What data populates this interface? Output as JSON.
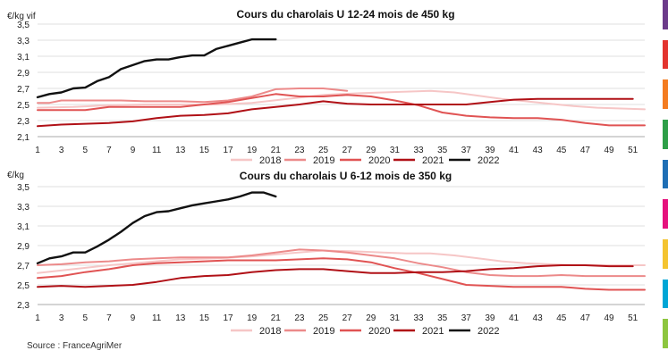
{
  "source": "Source : FranceAgriMer",
  "right_strip_colors": [
    "#6c3b8a",
    "#e3342f",
    "#f47c20",
    "#2e9f48",
    "#1f6fb5",
    "#e5127d",
    "#f4c430",
    "#00a6d6",
    "#8dc63f"
  ],
  "chart_data": [
    {
      "type": "line",
      "title": "Cours du charolais U 12-24 mois de 450 kg",
      "ylabel": "€/kg vif",
      "xlabel": "",
      "ylim": [
        2.1,
        3.5
      ],
      "yticks": [
        "2,1",
        "2,3",
        "2,5",
        "2,7",
        "2,9",
        "3,1",
        "3,3",
        "3,5"
      ],
      "xlim": [
        1,
        52
      ],
      "xticks": [
        "1",
        "3",
        "5",
        "7",
        "9",
        "11",
        "13",
        "15",
        "17",
        "19",
        "21",
        "23",
        "25",
        "27",
        "29",
        "31",
        "33",
        "35",
        "37",
        "39",
        "41",
        "43",
        "45",
        "47",
        "49",
        "51"
      ],
      "grid": "horizontal",
      "legend_position": "bottom",
      "series": [
        {
          "name": "2018",
          "color": "#f6c6c6",
          "width": 2,
          "x": [
            1,
            4,
            7,
            10,
            13,
            16,
            19,
            22,
            25,
            28,
            30,
            32,
            34,
            36,
            38,
            40,
            42,
            44,
            46,
            48,
            50,
            52
          ],
          "y": [
            2.46,
            2.47,
            2.49,
            2.5,
            2.5,
            2.5,
            2.52,
            2.57,
            2.62,
            2.64,
            2.65,
            2.66,
            2.67,
            2.65,
            2.61,
            2.57,
            2.54,
            2.51,
            2.48,
            2.46,
            2.45,
            2.44
          ]
        },
        {
          "name": "2019",
          "color": "#ec8a8a",
          "width": 2,
          "x": [
            1,
            2,
            3,
            5,
            8,
            10,
            13,
            15,
            17,
            19,
            21,
            23,
            25,
            27
          ],
          "y": [
            2.52,
            2.52,
            2.55,
            2.55,
            2.55,
            2.54,
            2.54,
            2.53,
            2.55,
            2.6,
            2.69,
            2.7,
            2.7,
            2.67
          ]
        },
        {
          "name": "2020",
          "color": "#e05353",
          "width": 2,
          "x": [
            1,
            3,
            5,
            7,
            9,
            11,
            13,
            15,
            17,
            19,
            21,
            23,
            25,
            27,
            29,
            31,
            33,
            35,
            37,
            39,
            41,
            43,
            45,
            47,
            49,
            52
          ],
          "y": [
            2.43,
            2.43,
            2.43,
            2.47,
            2.47,
            2.47,
            2.47,
            2.5,
            2.53,
            2.58,
            2.63,
            2.6,
            2.6,
            2.62,
            2.6,
            2.55,
            2.49,
            2.4,
            2.36,
            2.34,
            2.33,
            2.33,
            2.31,
            2.27,
            2.24,
            2.24
          ]
        },
        {
          "name": "2021",
          "color": "#b01016",
          "width": 2,
          "x": [
            1,
            3,
            5,
            7,
            9,
            11,
            13,
            15,
            17,
            19,
            21,
            23,
            25,
            27,
            29,
            31,
            33,
            35,
            37,
            39,
            41,
            43,
            45,
            47,
            49,
            51
          ],
          "y": [
            2.23,
            2.25,
            2.26,
            2.27,
            2.29,
            2.33,
            2.36,
            2.37,
            2.39,
            2.44,
            2.47,
            2.5,
            2.54,
            2.51,
            2.5,
            2.5,
            2.5,
            2.5,
            2.5,
            2.53,
            2.56,
            2.57,
            2.57,
            2.57,
            2.57,
            2.57
          ]
        },
        {
          "name": "2022",
          "color": "#111111",
          "width": 2.4,
          "x": [
            1,
            2,
            3,
            4,
            5,
            6,
            7,
            8,
            9,
            10,
            11,
            12,
            13,
            14,
            15,
            16,
            17,
            18,
            19,
            20,
            21
          ],
          "y": [
            2.59,
            2.63,
            2.65,
            2.7,
            2.71,
            2.79,
            2.84,
            2.94,
            2.99,
            3.04,
            3.06,
            3.06,
            3.09,
            3.11,
            3.11,
            3.19,
            3.23,
            3.27,
            3.31,
            3.31,
            3.31
          ]
        }
      ]
    },
    {
      "type": "line",
      "title": "Cours du charolais U 6-12 mois de 350 kg",
      "ylabel": "€/kg",
      "xlabel": "",
      "ylim": [
        2.3,
        3.5
      ],
      "yticks": [
        "2,3",
        "2,5",
        "2,7",
        "2,9",
        "3,1",
        "3,3",
        "3,5"
      ],
      "xlim": [
        1,
        52
      ],
      "xticks": [
        "1",
        "3",
        "5",
        "7",
        "9",
        "11",
        "13",
        "15",
        "17",
        "19",
        "21",
        "23",
        "25",
        "27",
        "29",
        "31",
        "33",
        "35",
        "37",
        "39",
        "41",
        "43",
        "45",
        "47",
        "49",
        "51"
      ],
      "grid": "horizontal",
      "legend_position": "bottom",
      "series": [
        {
          "name": "2018",
          "color": "#f6c6c6",
          "width": 2,
          "x": [
            1,
            4,
            7,
            10,
            13,
            16,
            19,
            22,
            25,
            28,
            30,
            32,
            34,
            36,
            38,
            40,
            42,
            44,
            46,
            48,
            50,
            52
          ],
          "y": [
            2.62,
            2.66,
            2.7,
            2.73,
            2.76,
            2.77,
            2.79,
            2.82,
            2.85,
            2.84,
            2.83,
            2.82,
            2.82,
            2.8,
            2.77,
            2.74,
            2.72,
            2.71,
            2.7,
            2.7,
            2.7,
            2.7
          ]
        },
        {
          "name": "2019",
          "color": "#ec8a8a",
          "width": 2,
          "x": [
            1,
            3,
            5,
            7,
            9,
            11,
            13,
            15,
            17,
            19,
            21,
            23,
            25,
            27,
            29,
            31,
            33,
            35,
            37,
            39,
            41,
            43,
            45,
            47,
            49,
            52
          ],
          "y": [
            2.7,
            2.71,
            2.73,
            2.74,
            2.76,
            2.77,
            2.78,
            2.78,
            2.78,
            2.8,
            2.83,
            2.86,
            2.85,
            2.83,
            2.8,
            2.77,
            2.72,
            2.68,
            2.63,
            2.6,
            2.59,
            2.59,
            2.6,
            2.59,
            2.59,
            2.59
          ]
        },
        {
          "name": "2020",
          "color": "#e05353",
          "width": 2,
          "x": [
            1,
            3,
            5,
            7,
            9,
            11,
            13,
            15,
            17,
            19,
            21,
            23,
            25,
            27,
            29,
            31,
            33,
            35,
            37,
            39,
            41,
            43,
            45,
            47,
            49,
            52
          ],
          "y": [
            2.57,
            2.59,
            2.63,
            2.66,
            2.7,
            2.72,
            2.73,
            2.74,
            2.75,
            2.75,
            2.75,
            2.76,
            2.77,
            2.76,
            2.73,
            2.67,
            2.62,
            2.56,
            2.5,
            2.49,
            2.48,
            2.48,
            2.48,
            2.46,
            2.45,
            2.45
          ]
        },
        {
          "name": "2021",
          "color": "#b01016",
          "width": 2,
          "x": [
            1,
            3,
            5,
            7,
            9,
            11,
            13,
            15,
            17,
            19,
            21,
            23,
            25,
            27,
            29,
            31,
            33,
            35,
            37,
            39,
            41,
            43,
            45,
            47,
            49,
            51
          ],
          "y": [
            2.48,
            2.49,
            2.48,
            2.49,
            2.5,
            2.53,
            2.57,
            2.59,
            2.6,
            2.63,
            2.65,
            2.66,
            2.66,
            2.64,
            2.62,
            2.62,
            2.63,
            2.63,
            2.64,
            2.66,
            2.67,
            2.69,
            2.7,
            2.7,
            2.69,
            2.69
          ]
        },
        {
          "name": "2022",
          "color": "#111111",
          "width": 2.4,
          "x": [
            1,
            2,
            3,
            4,
            5,
            6,
            7,
            8,
            9,
            10,
            11,
            12,
            13,
            14,
            15,
            16,
            17,
            18,
            19,
            20,
            21
          ],
          "y": [
            2.72,
            2.77,
            2.79,
            2.83,
            2.83,
            2.89,
            2.96,
            3.04,
            3.13,
            3.2,
            3.24,
            3.25,
            3.28,
            3.31,
            3.33,
            3.35,
            3.37,
            3.4,
            3.44,
            3.44,
            3.4
          ]
        }
      ]
    }
  ]
}
